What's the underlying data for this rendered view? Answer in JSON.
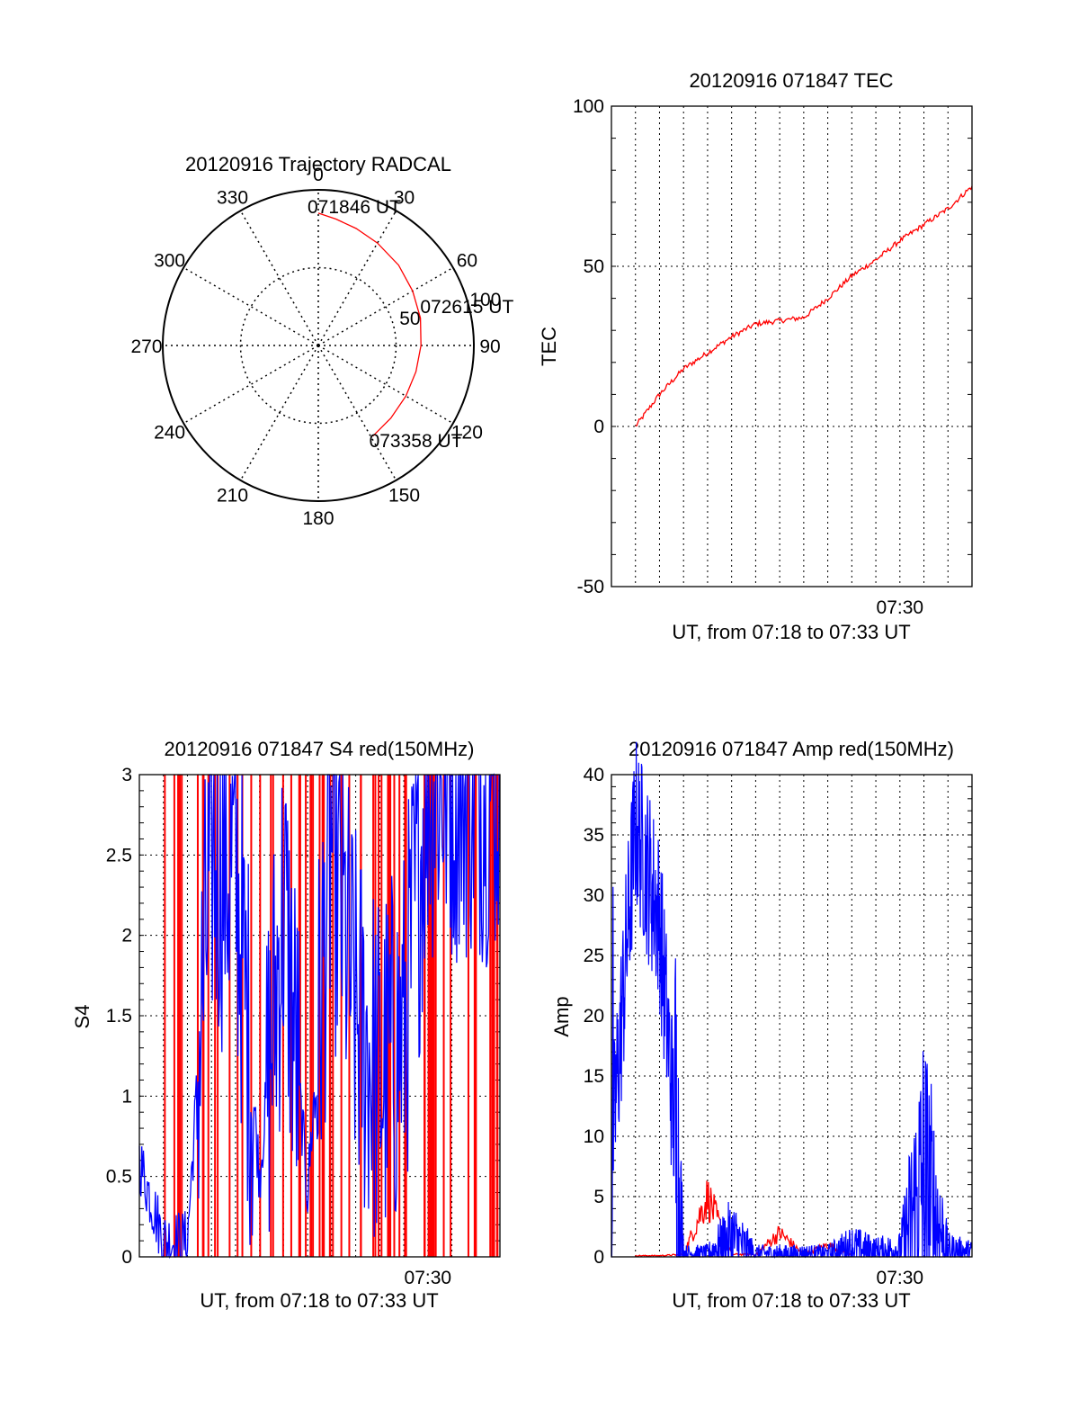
{
  "colors": {
    "red_series": "#ff0000",
    "blue_series": "#0000ff",
    "axis": "#000000",
    "grid": "#000000"
  },
  "chart_data": [
    {
      "type": "polar",
      "title": "20120916 Trajectory RADCAL",
      "angle_ticks": [
        {
          "angle": 0,
          "label": "0"
        },
        {
          "angle": 30,
          "label": "30"
        },
        {
          "angle": 60,
          "label": "60"
        },
        {
          "angle": 90,
          "label": "90"
        },
        {
          "angle": 120,
          "label": "120"
        },
        {
          "angle": 150,
          "label": "150"
        },
        {
          "angle": 180,
          "label": "180"
        },
        {
          "angle": 210,
          "label": "210"
        },
        {
          "angle": 240,
          "label": "240"
        },
        {
          "angle": 270,
          "label": "270"
        },
        {
          "angle": 300,
          "label": "300"
        },
        {
          "angle": 330,
          "label": "330"
        }
      ],
      "radial_ticks": [
        {
          "value": 50,
          "label": "50"
        },
        {
          "value": 100,
          "label": "100"
        }
      ],
      "rmax": 100,
      "grid": true,
      "trajectory": {
        "color": "red",
        "azimuth": [
          0,
          8,
          18,
          30,
          45,
          60,
          75,
          90,
          105,
          120,
          135,
          149
        ],
        "radius": [
          85,
          82,
          79,
          76,
          73,
          70,
          68,
          66,
          65,
          65,
          66,
          68
        ]
      },
      "annotations": [
        {
          "label": "071846 UT",
          "azimuth": 0,
          "radius": 85
        },
        {
          "label": "072615 UT",
          "azimuth": 78,
          "radius": 67
        },
        {
          "label": "073358 UT",
          "azimuth": 149,
          "radius": 68
        }
      ]
    },
    {
      "type": "line",
      "title": "20120916 071847 TEC",
      "xlabel": "UT, from 07:18 to 07:33 UT",
      "ylabel": "TEC",
      "xlim": [
        "07:18",
        "07:33"
      ],
      "ylim": [
        -50,
        100
      ],
      "yticks": [
        -50,
        0,
        50,
        100
      ],
      "xtick_labels": [
        {
          "time": "07:30",
          "label": "07:30"
        }
      ],
      "grid": true,
      "series": [
        {
          "color": "red",
          "x": [
            "07:19",
            "07:20",
            "07:21",
            "07:22",
            "07:23",
            "07:24",
            "07:25",
            "07:26",
            "07:27",
            "07:28",
            "07:29",
            "07:30",
            "07:31",
            "07:32",
            "07:33"
          ],
          "y": [
            0,
            10,
            18,
            23,
            28,
            32,
            33,
            34,
            40,
            47,
            52,
            58,
            63,
            68,
            75
          ]
        }
      ]
    },
    {
      "type": "line",
      "title": "20120916 071847 S4 red(150MHz)",
      "xlabel": "UT, from 07:18 to 07:33 UT",
      "ylabel": "S4",
      "xlim": [
        "07:18",
        "07:33"
      ],
      "ylim": [
        0,
        3
      ],
      "yticks": [
        0,
        0.5,
        1,
        1.5,
        2,
        2.5,
        3
      ],
      "ytick_labels": [
        "0",
        "0.5",
        "1",
        "1.5",
        "2",
        "2.5",
        "3"
      ],
      "xtick_labels": [
        {
          "time": "07:30",
          "label": "07:30"
        }
      ],
      "grid": true,
      "series": [
        {
          "color": "red",
          "note": "dense spikes to 3",
          "x": [
            "07:19",
            "07:20",
            "07:21",
            "07:22",
            "07:23",
            "07:24",
            "07:25",
            "07:26",
            "07:27",
            "07:28",
            "07:29",
            "07:30",
            "07:31",
            "07:32",
            "07:33"
          ],
          "y": [
            3,
            3,
            3,
            3,
            3,
            3,
            3,
            3,
            3,
            3,
            3,
            3,
            3,
            3,
            3
          ]
        },
        {
          "color": "blue",
          "x": [
            "07:18",
            "07:19",
            "07:20",
            "07:21",
            "07:22",
            "07:23",
            "07:24",
            "07:25",
            "07:26",
            "07:27",
            "07:28",
            "07:29",
            "07:30",
            "07:31",
            "07:32",
            "07:33"
          ],
          "y": [
            0.6,
            0.1,
            0.1,
            2.5,
            2.4,
            0.5,
            2.2,
            0.4,
            2.6,
            1.5,
            1.1,
            1.4,
            3.0,
            3.0,
            3.0,
            3.0
          ]
        }
      ]
    },
    {
      "type": "line",
      "title": "20120916 071847 Amp red(150MHz)",
      "xlabel": "UT, from 07:18 to 07:33 UT",
      "ylabel": "Amp",
      "xlim": [
        "07:18",
        "07:33"
      ],
      "ylim": [
        0,
        40
      ],
      "yticks": [
        0,
        5,
        10,
        15,
        20,
        25,
        30,
        35,
        40
      ],
      "xtick_labels": [
        {
          "time": "07:30",
          "label": "07:30"
        }
      ],
      "grid": true,
      "series": [
        {
          "color": "blue",
          "x": [
            "07:18",
            "07:19",
            "07:20",
            "07:21",
            "07:22",
            "07:23",
            "07:24",
            "07:25",
            "07:26",
            "07:27",
            "07:28",
            "07:29",
            "07:30",
            "07:31",
            "07:32",
            "07:33"
          ],
          "y": [
            8,
            36,
            28,
            0.3,
            0.3,
            1.5,
            0.3,
            0.3,
            0.3,
            0.3,
            0.8,
            0.5,
            0.6,
            6,
            0.6,
            0.4
          ]
        },
        {
          "color": "red",
          "x": [
            "07:19",
            "07:20",
            "07:21",
            "07:22",
            "07:23",
            "07:24",
            "07:25",
            "07:26",
            "07:27",
            "07:28"
          ],
          "y": [
            0.1,
            0.1,
            0.2,
            5,
            0.2,
            0.2,
            2,
            0.2,
            1,
            0.2
          ]
        }
      ]
    }
  ]
}
